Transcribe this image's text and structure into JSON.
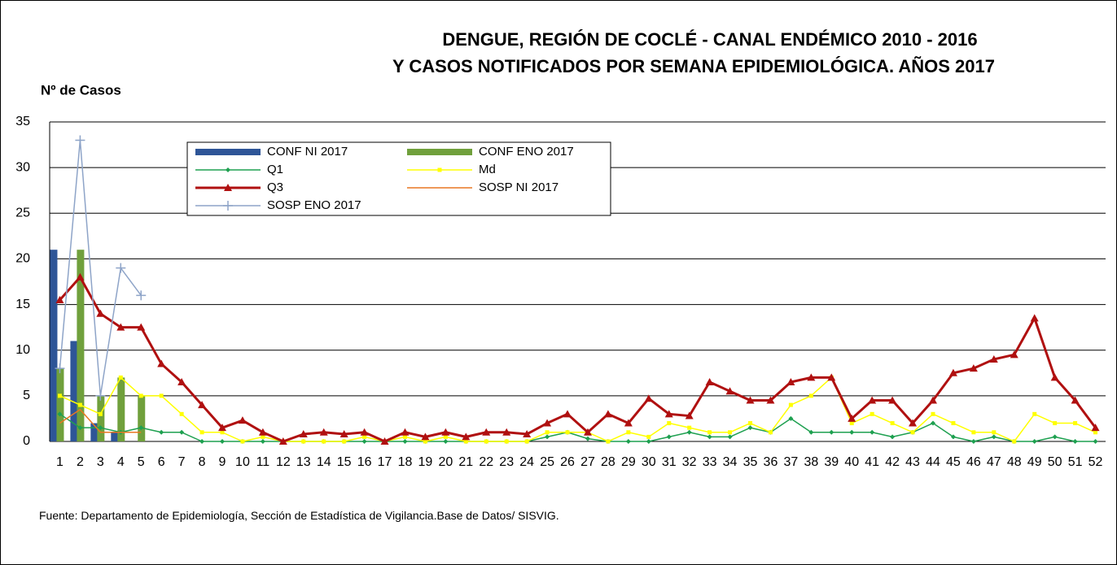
{
  "chart_data": {
    "type": "bar-line",
    "title": [
      "DENGUE, REGIÓN DE COCLÉ - CANAL ENDÉMICO 2010 - 2016",
      "Y CASOS NOTIFICADOS POR SEMANA EPIDEMIOLÓGICA. AÑOS 2017"
    ],
    "ylabel": "Nº de Casos",
    "source": "Fuente: Departamento de Epidemiología,  Sección de Estadística de Vigilancia.Base de Datos/ SISVIG.",
    "categories": [
      "1",
      "2",
      "3",
      "4",
      "5",
      "6",
      "7",
      "8",
      "9",
      "10",
      "11",
      "12",
      "13",
      "14",
      "15",
      "16",
      "17",
      "18",
      "19",
      "20",
      "21",
      "22",
      "23",
      "24",
      "25",
      "26",
      "27",
      "28",
      "29",
      "30",
      "31",
      "32",
      "33",
      "34",
      "35",
      "36",
      "37",
      "38",
      "39",
      "40",
      "41",
      "42",
      "43",
      "44",
      "45",
      "46",
      "47",
      "48",
      "49",
      "50",
      "51",
      "52"
    ],
    "ylim": [
      0,
      35
    ],
    "yticks": [
      0,
      5,
      10,
      15,
      20,
      25,
      30,
      35
    ],
    "grid": true,
    "series": [
      {
        "name": "CONF NI 2017",
        "kind": "bar",
        "color": "#2e5597",
        "values": [
          21,
          11,
          2,
          1,
          0,
          null,
          null,
          null,
          null,
          null,
          null,
          null,
          null,
          null,
          null,
          null,
          null,
          null,
          null,
          null,
          null,
          null,
          null,
          null,
          null,
          null,
          null,
          null,
          null,
          null,
          null,
          null,
          null,
          null,
          null,
          null,
          null,
          null,
          null,
          null,
          null,
          null,
          null,
          null,
          null,
          null,
          null,
          null,
          null,
          null,
          null,
          null
        ]
      },
      {
        "name": "CONF ENO 2017",
        "kind": "bar",
        "color": "#70a03c",
        "values": [
          8,
          21,
          5,
          7,
          5,
          null,
          null,
          null,
          null,
          null,
          null,
          null,
          null,
          null,
          null,
          null,
          null,
          null,
          null,
          null,
          null,
          null,
          null,
          null,
          null,
          null,
          null,
          null,
          null,
          null,
          null,
          null,
          null,
          null,
          null,
          null,
          null,
          null,
          null,
          null,
          null,
          null,
          null,
          null,
          null,
          null,
          null,
          null,
          null,
          null,
          null,
          null
        ]
      },
      {
        "name": "Q1",
        "kind": "line",
        "marker": "diamond",
        "width": 1.5,
        "color": "#1ea050",
        "values": [
          3,
          1.5,
          1.5,
          1,
          1.5,
          1,
          1,
          0,
          0,
          0,
          0,
          0,
          0,
          0,
          0,
          0,
          0,
          0,
          0,
          0,
          0,
          0,
          0,
          0,
          0.5,
          1,
          0.3,
          0,
          0,
          0,
          0.5,
          1,
          0.5,
          0.5,
          1.5,
          1,
          2.5,
          1,
          1,
          1,
          1,
          0.5,
          1,
          2,
          0.5,
          0,
          0.5,
          0,
          0,
          0.5,
          0,
          0
        ]
      },
      {
        "name": "Md",
        "kind": "line",
        "marker": "square",
        "width": 1.5,
        "color": "#ffff00",
        "values": [
          5,
          4,
          3,
          7,
          5,
          5,
          3,
          1,
          1,
          0,
          0.5,
          0,
          0,
          0,
          0,
          0.5,
          0,
          0.5,
          0,
          0.5,
          0,
          0,
          0,
          0,
          1,
          1,
          1,
          0,
          1,
          0.5,
          2,
          1.5,
          1,
          1,
          2,
          1,
          4,
          5,
          7,
          2,
          3,
          2,
          1,
          3,
          2,
          1,
          1,
          0,
          3,
          2,
          2,
          1
        ]
      },
      {
        "name": "Q3",
        "kind": "line",
        "marker": "triangle",
        "width": 3,
        "color": "#b01010",
        "values": [
          15.5,
          18,
          14,
          12.5,
          12.5,
          8.5,
          6.5,
          4,
          1.5,
          2.3,
          1,
          0,
          0.8,
          1,
          0.8,
          1,
          0,
          1,
          0.5,
          1,
          0.5,
          1,
          1,
          0.8,
          2,
          3,
          1,
          3,
          2,
          4.7,
          3,
          2.8,
          6.5,
          5.5,
          4.5,
          4.5,
          6.5,
          7,
          7,
          2.5,
          4.5,
          4.5,
          2,
          4.5,
          7.5,
          8,
          9,
          9.5,
          13.5,
          7,
          4.5,
          1.5
        ]
      },
      {
        "name": "SOSP NI 2017",
        "kind": "line",
        "marker": "none",
        "width": 1.5,
        "color": "#e87722",
        "values": [
          2,
          3.5,
          1,
          1,
          1,
          null,
          null,
          null,
          null,
          null,
          null,
          null,
          null,
          null,
          null,
          null,
          null,
          null,
          null,
          null,
          null,
          null,
          null,
          null,
          null,
          null,
          null,
          null,
          null,
          null,
          null,
          null,
          null,
          null,
          null,
          null,
          null,
          null,
          null,
          null,
          null,
          null,
          null,
          null,
          null,
          null,
          null,
          null,
          null,
          null,
          null,
          null
        ]
      },
      {
        "name": "SOSP ENO 2017",
        "kind": "line",
        "marker": "plus",
        "width": 1.5,
        "color": "#8ea4c8",
        "values": [
          8,
          33,
          5,
          19,
          16,
          null,
          null,
          null,
          null,
          null,
          null,
          null,
          null,
          null,
          null,
          null,
          null,
          null,
          null,
          null,
          null,
          null,
          null,
          null,
          null,
          null,
          null,
          null,
          null,
          null,
          null,
          null,
          null,
          null,
          null,
          null,
          null,
          null,
          null,
          null,
          null,
          null,
          null,
          null,
          null,
          null,
          null,
          null,
          null,
          null,
          null,
          null
        ]
      }
    ]
  }
}
